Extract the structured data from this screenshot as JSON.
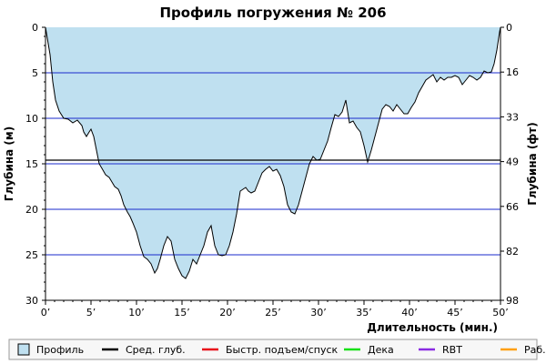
{
  "chart_data": {
    "type": "area",
    "title": "Профиль погружения № 206",
    "xlabel": "Длительность (мин.)",
    "ylabel_left": "Глубина (м)",
    "ylabel_right": "Глубина (фт)",
    "xlim": [
      0,
      50
    ],
    "ylim_left": [
      0,
      30
    ],
    "y_inverted": true,
    "grid": true,
    "x_ticks": [
      0,
      5,
      10,
      15,
      20,
      25,
      30,
      35,
      40,
      45,
      50
    ],
    "x_tick_labels": [
      "0’",
      "5’",
      "10’",
      "15’",
      "20’",
      "25’",
      "30’",
      "35’",
      "40’",
      "45’",
      "50’"
    ],
    "y_ticks_left": [
      0,
      5,
      10,
      15,
      20,
      25,
      30
    ],
    "y_tick_labels_left": [
      "0",
      "5",
      "10",
      "15",
      "20",
      "25",
      "30"
    ],
    "y_ticks_right_m": [
      0,
      4.92,
      9.84,
      14.76,
      19.68,
      24.6,
      30
    ],
    "y_tick_labels_right": [
      "0",
      "16",
      "33",
      "49",
      "66",
      "82",
      "98"
    ],
    "average_depth_m": 14.6,
    "series": [
      {
        "name": "Профиль",
        "x": [
          0,
          0.5,
          0.8,
          1.1,
          1.5,
          2.0,
          2.5,
          3.0,
          3.5,
          4.0,
          4.2,
          4.5,
          4.8,
          5.0,
          5.3,
          5.6,
          5.9,
          6.2,
          6.6,
          7.0,
          7.3,
          7.6,
          8.0,
          8.3,
          8.6,
          9.0,
          9.3,
          9.6,
          10.0,
          10.4,
          10.8,
          11.2,
          11.6,
          12.0,
          12.3,
          12.6,
          13.0,
          13.4,
          13.8,
          14.2,
          14.6,
          15.0,
          15.4,
          15.8,
          16.2,
          16.6,
          17.0,
          17.4,
          17.8,
          18.2,
          18.6,
          19.0,
          19.4,
          19.8,
          20.2,
          20.6,
          21.0,
          21.4,
          21.7,
          22.0,
          22.3,
          22.6,
          23.0,
          23.4,
          23.8,
          24.2,
          24.6,
          25.0,
          25.4,
          25.8,
          26.2,
          26.6,
          27.0,
          27.4,
          27.8,
          28.2,
          28.6,
          29.0,
          29.4,
          29.8,
          30.2,
          30.6,
          31.0,
          31.4,
          31.8,
          32.2,
          32.6,
          33.0,
          33.4,
          33.8,
          34.2,
          34.6,
          35.0,
          35.4,
          35.8,
          36.2,
          36.6,
          37.0,
          37.4,
          37.8,
          38.2,
          38.6,
          39.0,
          39.4,
          39.8,
          40.2,
          40.6,
          41.0,
          41.4,
          41.8,
          42.2,
          42.6,
          43.0,
          43.4,
          43.8,
          44.2,
          44.6,
          45.0,
          45.4,
          45.8,
          46.2,
          46.6,
          47.0,
          47.4,
          47.8,
          48.2,
          48.6,
          49.0,
          49.3,
          49.6,
          49.9,
          50.0
        ],
        "y": [
          0,
          3.0,
          6.0,
          8.0,
          9.2,
          10.0,
          10.1,
          10.5,
          10.2,
          10.8,
          11.5,
          12.0,
          11.5,
          11.2,
          12.0,
          13.5,
          15.0,
          15.5,
          16.2,
          16.5,
          17.0,
          17.5,
          17.8,
          18.5,
          19.5,
          20.3,
          20.8,
          21.5,
          22.5,
          24.0,
          25.2,
          25.5,
          26.0,
          27.0,
          26.5,
          25.5,
          24.0,
          23.0,
          23.5,
          25.5,
          26.5,
          27.3,
          27.6,
          26.8,
          25.5,
          26.0,
          25.0,
          24.0,
          22.5,
          21.8,
          24.0,
          25.0,
          25.1,
          25.0,
          24.0,
          22.5,
          20.5,
          18.0,
          17.8,
          17.6,
          18.0,
          18.2,
          18.0,
          17.0,
          16.0,
          15.6,
          15.3,
          15.8,
          15.6,
          16.3,
          17.5,
          19.5,
          20.3,
          20.5,
          19.5,
          18.0,
          16.5,
          15.0,
          14.2,
          14.6,
          14.5,
          13.5,
          12.5,
          11.0,
          9.6,
          9.8,
          9.3,
          8.0,
          10.5,
          10.3,
          11.0,
          11.5,
          13.0,
          14.8,
          13.5,
          12.0,
          10.5,
          9.0,
          8.5,
          8.7,
          9.2,
          8.5,
          9.0,
          9.5,
          9.5,
          8.8,
          8.2,
          7.2,
          6.5,
          5.8,
          5.5,
          5.2,
          6.0,
          5.5,
          5.8,
          5.5,
          5.5,
          5.3,
          5.5,
          6.3,
          5.8,
          5.3,
          5.5,
          5.8,
          5.5,
          4.8,
          5.0,
          4.9,
          4.0,
          2.5,
          0.5,
          0
        ]
      }
    ],
    "legend": [
      {
        "label": "Профиль",
        "color": "#bfe0f0",
        "kind": "box"
      },
      {
        "label": "Сред. глуб.",
        "color": "#000000",
        "kind": "line"
      },
      {
        "label": "Быстр. подъем/спуск",
        "color": "#e8101a",
        "kind": "line"
      },
      {
        "label": "Дека",
        "color": "#18e018",
        "kind": "line"
      },
      {
        "label": "RBT",
        "color": "#8a2be2",
        "kind": "line"
      },
      {
        "label": "Раб.",
        "color": "#ffa010",
        "kind": "line"
      }
    ],
    "colors": {
      "fill": "#bfe0f0",
      "outline": "#000000",
      "grid": "#1a2acc",
      "average": "#000000"
    }
  }
}
